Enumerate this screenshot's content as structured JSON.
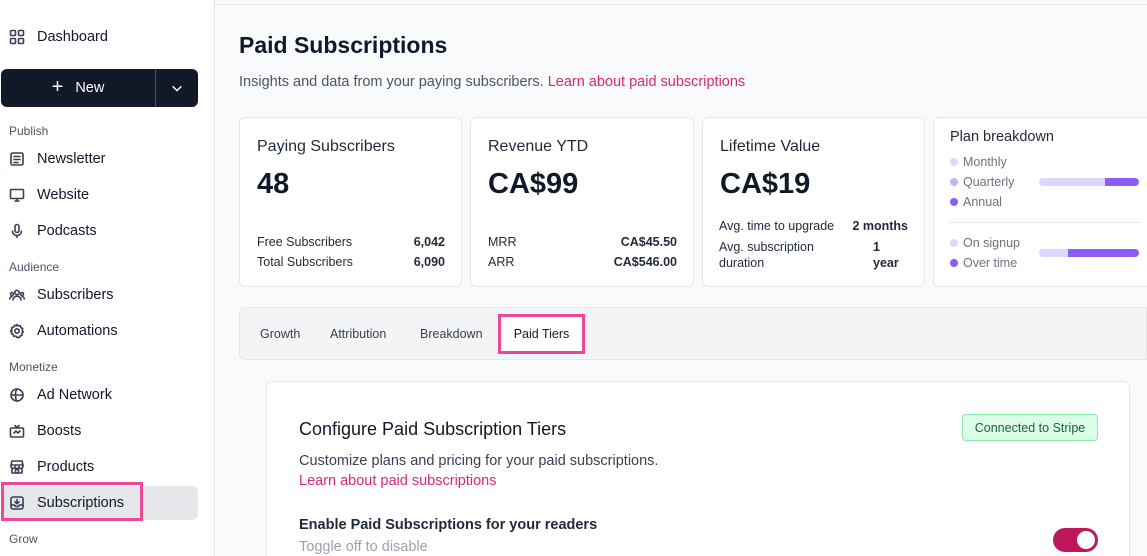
{
  "sidebar": {
    "dashboard": "Dashboard",
    "new_label": "New",
    "sections": {
      "publish": "Publish",
      "audience": "Audience",
      "monetize": "Monetize",
      "grow": "Grow"
    },
    "items": {
      "newsletter": "Newsletter",
      "website": "Website",
      "podcasts": "Podcasts",
      "subscribers": "Subscribers",
      "automations": "Automations",
      "ad_network": "Ad Network",
      "boosts": "Boosts",
      "products": "Products",
      "subscriptions": "Subscriptions"
    }
  },
  "page": {
    "title": "Paid Subscriptions",
    "subtitle": "Insights and data from your paying subscribers.",
    "subtitle_link": "Learn about paid subscriptions"
  },
  "cards": {
    "paying": {
      "title": "Paying Subscribers",
      "value": "48",
      "rows": [
        {
          "label": "Free Subscribers",
          "value": "6,042"
        },
        {
          "label": "Total Subscribers",
          "value": "6,090"
        }
      ]
    },
    "revenue": {
      "title": "Revenue YTD",
      "value": "CA$99",
      "rows": [
        {
          "label": "MRR",
          "value": "CA$45.50"
        },
        {
          "label": "ARR",
          "value": "CA$546.00"
        }
      ]
    },
    "ltv": {
      "title": "Lifetime Value",
      "value": "CA$19",
      "rows": [
        {
          "label": "Avg. time to upgrade",
          "value": "2 months"
        },
        {
          "label1": "Avg. subscription",
          "label2": "duration",
          "value1": "1",
          "value2": "year"
        }
      ]
    },
    "plan": {
      "title": "Plan breakdown",
      "legend1": [
        "Monthly",
        "Quarterly",
        "Annual"
      ],
      "legend2": [
        "On signup",
        "Over time"
      ],
      "bar1_annual_fraction": 0.34,
      "bar2_over_time_fraction": 0.71,
      "colors": {
        "light": "#ddd6fe",
        "mid": "#c4b5fd",
        "dark": "#8b5cf6"
      }
    }
  },
  "tabs": [
    "Growth",
    "Attribution",
    "Breakdown",
    "Paid Tiers"
  ],
  "active_tab": "Paid Tiers",
  "config": {
    "title": "Configure Paid Subscription Tiers",
    "badge": "Connected to Stripe",
    "description": "Customize plans and pricing for your paid subscriptions.",
    "link": "Learn about paid subscriptions",
    "enable_label": "Enable Paid Subscriptions for your readers",
    "toggle_hint": "Toggle off to disable",
    "toggle_on": true
  },
  "colors": {
    "accent": "#db2777",
    "highlight": "#ec4899",
    "toggle": "#be185d",
    "new_button": "#111827"
  }
}
